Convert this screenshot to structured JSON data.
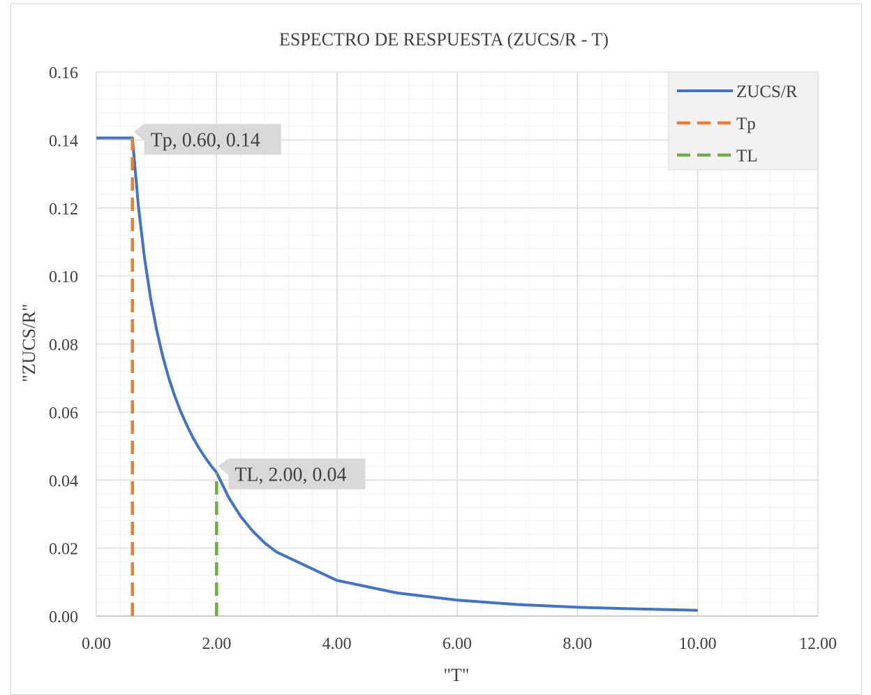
{
  "chart_data": {
    "type": "line",
    "title": "ESPECTRO DE RESPUESTA (ZUCS/R - T)",
    "xlabel": "\"T\"",
    "ylabel": "\"ZUCS/R\"",
    "xlim": [
      0,
      12
    ],
    "ylim": [
      0,
      0.16
    ],
    "x_ticks": [
      "0.00",
      "2.00",
      "4.00",
      "6.00",
      "8.00",
      "10.00",
      "12.00"
    ],
    "y_ticks": [
      "0.00",
      "0.02",
      "0.04",
      "0.06",
      "0.08",
      "0.10",
      "0.12",
      "0.14",
      "0.16"
    ],
    "x_tick_values": [
      0,
      2,
      4,
      6,
      8,
      10,
      12
    ],
    "y_tick_values": [
      0,
      0.02,
      0.04,
      0.06,
      0.08,
      0.1,
      0.12,
      0.14,
      0.16
    ],
    "grid": true,
    "legend_position": "top-right",
    "series": [
      {
        "name": "ZUCS/R",
        "style": "solid",
        "color": "#4472c4",
        "points": [
          [
            0,
            0.1406
          ],
          [
            0.1,
            0.1406
          ],
          [
            0.2,
            0.1406
          ],
          [
            0.3,
            0.1406
          ],
          [
            0.4,
            0.1406
          ],
          [
            0.5,
            0.1406
          ],
          [
            0.6,
            0.1406
          ],
          [
            0.7,
            0.1205
          ],
          [
            0.8,
            0.1055
          ],
          [
            0.9,
            0.0938
          ],
          [
            1.0,
            0.0844
          ],
          [
            1.1,
            0.0767
          ],
          [
            1.2,
            0.0703
          ],
          [
            1.3,
            0.0649
          ],
          [
            1.4,
            0.0603
          ],
          [
            1.5,
            0.0563
          ],
          [
            1.6,
            0.0527
          ],
          [
            1.7,
            0.0496
          ],
          [
            1.8,
            0.0469
          ],
          [
            1.9,
            0.0444
          ],
          [
            2.0,
            0.0422
          ],
          [
            2.2,
            0.0349
          ],
          [
            2.4,
            0.0293
          ],
          [
            2.6,
            0.025
          ],
          [
            2.8,
            0.0215
          ],
          [
            3.0,
            0.0188
          ],
          [
            4.0,
            0.0105
          ],
          [
            5.0,
            0.0068
          ],
          [
            6.0,
            0.0047
          ],
          [
            7.0,
            0.0034
          ],
          [
            8.0,
            0.0026
          ],
          [
            9.0,
            0.0021
          ],
          [
            10.0,
            0.0017
          ]
        ]
      },
      {
        "name": "Tp",
        "style": "dashed",
        "color": "#ed7d31",
        "points": [
          [
            0.6,
            0.0
          ],
          [
            0.6,
            0.1406
          ]
        ]
      },
      {
        "name": "TL",
        "style": "dashed",
        "color": "#70ad47",
        "points": [
          [
            2.0,
            0.0
          ],
          [
            2.0,
            0.0422
          ]
        ]
      }
    ],
    "annotations": [
      {
        "text": "Tp, 0.60, 0.14",
        "x": 0.6,
        "y": 0.1406
      },
      {
        "text": "TL, 2.00, 0.04",
        "x": 2.0,
        "y": 0.0422
      }
    ]
  }
}
